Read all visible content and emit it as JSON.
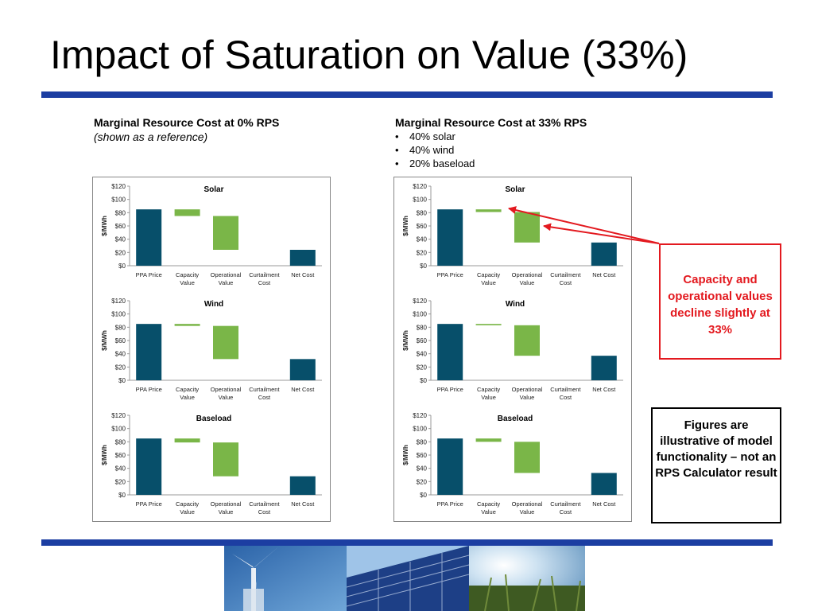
{
  "slide": {
    "title": "Impact of Saturation on Value (33%)"
  },
  "left_header": {
    "heading": "Marginal Resource Cost at 0% RPS",
    "subtitle": "(shown as a reference)"
  },
  "right_header": {
    "heading": "Marginal Resource Cost at 33% RPS",
    "bullets": [
      "40% solar",
      "40% wind",
      "20% baseload"
    ]
  },
  "callouts": {
    "red": "Capacity and operational values decline slightly at 33%",
    "black": "Figures are illustrative of model functionality – not an RPS Calculator result"
  },
  "colors": {
    "rule": "#1c3ea2",
    "bar_blue": "#074f6a",
    "bar_green": "#7ab648",
    "callout_red": "#e3191f"
  },
  "chart_common": {
    "type": "bar",
    "ylabel": "$/MWh",
    "ylim": [
      0,
      120
    ],
    "yticks": [
      "$0",
      "$20",
      "$40",
      "$60",
      "$80",
      "$100",
      "$120"
    ],
    "categories": [
      [
        "PPA Price"
      ],
      [
        "Capacity",
        "Value"
      ],
      [
        "Operational",
        "Value"
      ],
      [
        "Curtailment",
        "Cost"
      ],
      [
        "Net Cost"
      ]
    ]
  },
  "chart_data": [
    {
      "id": "l1",
      "title": "Solar",
      "type": "bar",
      "values": [
        {
          "from": 0,
          "to": 85
        },
        {
          "from": 75,
          "to": 85
        },
        {
          "from": 24,
          "to": 75
        },
        null,
        {
          "from": 0,
          "to": 24
        }
      ]
    },
    {
      "id": "l2",
      "title": "Wind",
      "type": "bar",
      "values": [
        {
          "from": 0,
          "to": 85
        },
        {
          "from": 82,
          "to": 85
        },
        {
          "from": 32,
          "to": 82
        },
        null,
        {
          "from": 0,
          "to": 32
        }
      ]
    },
    {
      "id": "l3",
      "title": "Baseload",
      "type": "bar",
      "values": [
        {
          "from": 0,
          "to": 85
        },
        {
          "from": 79,
          "to": 85
        },
        {
          "from": 28,
          "to": 79
        },
        null,
        {
          "from": 0,
          "to": 28
        }
      ]
    },
    {
      "id": "r1",
      "title": "Solar",
      "type": "bar",
      "values": [
        {
          "from": 0,
          "to": 85
        },
        {
          "from": 81,
          "to": 85
        },
        {
          "from": 35,
          "to": 81
        },
        null,
        {
          "from": 0,
          "to": 35
        }
      ]
    },
    {
      "id": "r2",
      "title": "Wind",
      "type": "bar",
      "values": [
        {
          "from": 0,
          "to": 85
        },
        {
          "from": 83,
          "to": 85
        },
        {
          "from": 37,
          "to": 83
        },
        null,
        {
          "from": 0,
          "to": 37
        }
      ]
    },
    {
      "id": "r3",
      "title": "Baseload",
      "type": "bar",
      "values": [
        {
          "from": 0,
          "to": 85
        },
        {
          "from": 80,
          "to": 85
        },
        {
          "from": 33,
          "to": 80
        },
        null,
        {
          "from": 0,
          "to": 33
        }
      ]
    }
  ]
}
